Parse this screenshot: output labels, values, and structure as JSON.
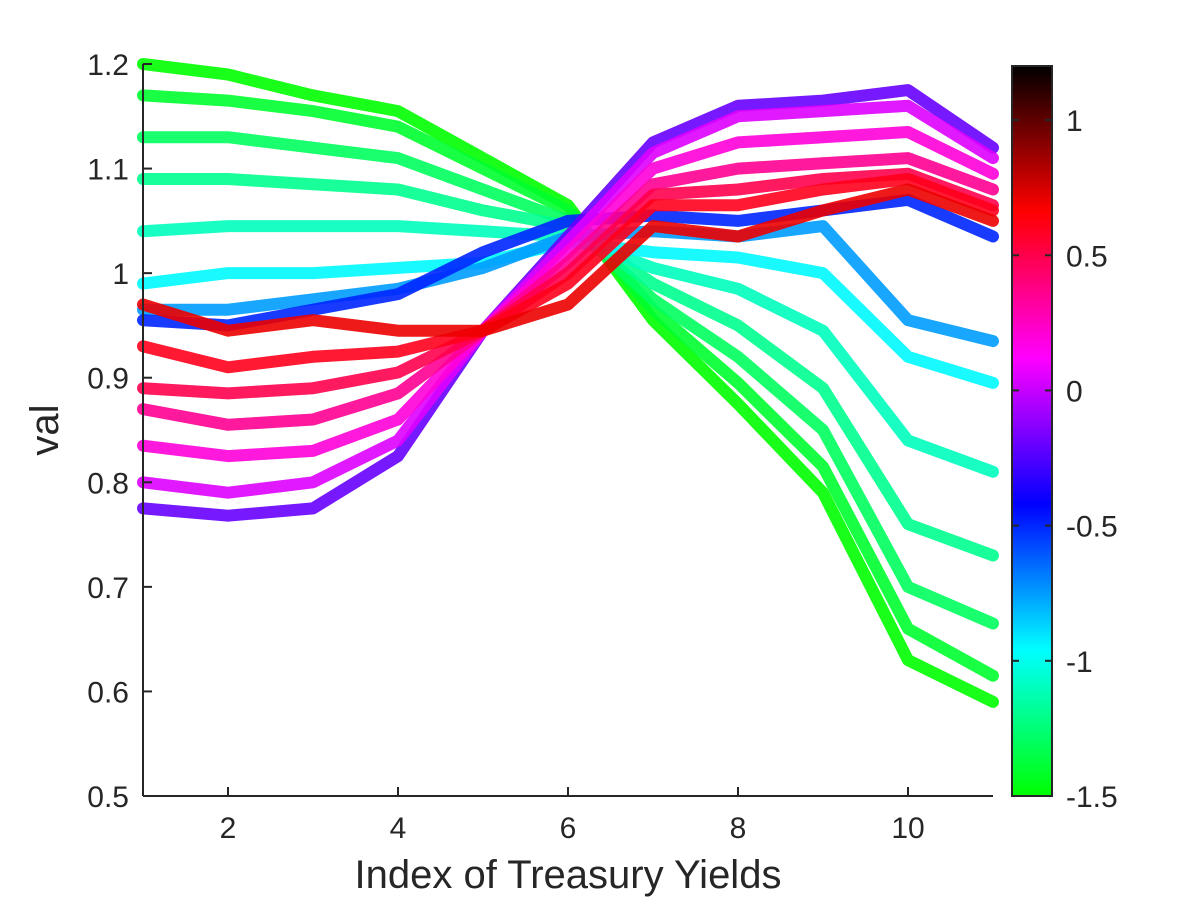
{
  "chart_data": {
    "type": "line",
    "xlabel": "Index of Treasury Yields",
    "ylabel": "val",
    "xlim": [
      1,
      11
    ],
    "ylim": [
      0.5,
      1.2
    ],
    "xticks": [
      2,
      4,
      6,
      8,
      10
    ],
    "xtick_labels": [
      "2",
      "4",
      "6",
      "8",
      "10"
    ],
    "yticks": [
      0.5,
      0.6,
      0.7,
      0.8,
      0.9,
      1.0,
      1.1,
      1.2
    ],
    "ytick_labels": [
      "0.5",
      "0.6",
      "0.7",
      "0.8",
      "0.9",
      "1",
      "1.1",
      "1.2"
    ],
    "grid": false,
    "x": [
      1,
      2,
      3,
      4,
      5,
      6,
      7,
      8,
      9,
      10,
      11
    ],
    "colorbar": {
      "range": [
        -1.5,
        1.2
      ],
      "ticks": [
        -1.5,
        -1,
        -0.5,
        0,
        0.5,
        1
      ],
      "tick_labels": [
        "-1.5",
        "-1",
        "-0.5",
        "0",
        "0.5",
        "1"
      ],
      "colormap": [
        "#00ff00",
        "#00ffff",
        "#0000ff",
        "#ff00ff",
        "#ff0000",
        "#000000"
      ]
    },
    "series": [
      {
        "color_value": -1.5,
        "values": [
          1.2,
          1.19,
          1.17,
          1.155,
          1.11,
          1.065,
          0.955,
          0.875,
          0.79,
          0.63,
          0.59
        ]
      },
      {
        "color_value": -1.4,
        "values": [
          1.17,
          1.165,
          1.155,
          1.14,
          1.1,
          1.06,
          0.965,
          0.895,
          0.815,
          0.66,
          0.615
        ]
      },
      {
        "color_value": -1.3,
        "values": [
          1.13,
          1.13,
          1.12,
          1.11,
          1.08,
          1.05,
          0.975,
          0.92,
          0.85,
          0.7,
          0.665
        ]
      },
      {
        "color_value": -1.2,
        "values": [
          1.09,
          1.09,
          1.085,
          1.08,
          1.06,
          1.045,
          0.99,
          0.95,
          0.89,
          0.76,
          0.73
        ]
      },
      {
        "color_value": -1.1,
        "values": [
          1.04,
          1.045,
          1.045,
          1.045,
          1.04,
          1.035,
          1.005,
          0.985,
          0.945,
          0.84,
          0.81
        ]
      },
      {
        "color_value": -0.95,
        "values": [
          0.99,
          1.0,
          1.0,
          1.005,
          1.01,
          1.03,
          1.02,
          1.015,
          1.0,
          0.92,
          0.895
        ]
      },
      {
        "color_value": -0.75,
        "values": [
          0.965,
          0.965,
          0.975,
          0.985,
          1.005,
          1.035,
          1.04,
          1.035,
          1.045,
          0.955,
          0.935
        ]
      },
      {
        "color_value": -0.5,
        "values": [
          0.955,
          0.95,
          0.965,
          0.98,
          1.02,
          1.05,
          1.055,
          1.05,
          1.06,
          1.07,
          1.035
        ]
      },
      {
        "color_value": -0.2,
        "values": [
          0.775,
          0.768,
          0.775,
          0.825,
          0.945,
          1.035,
          1.125,
          1.16,
          1.165,
          1.175,
          1.12
        ]
      },
      {
        "color_value": 0.05,
        "values": [
          0.8,
          0.79,
          0.8,
          0.84,
          0.945,
          1.03,
          1.115,
          1.15,
          1.155,
          1.16,
          1.11
        ]
      },
      {
        "color_value": 0.2,
        "values": [
          0.835,
          0.825,
          0.83,
          0.86,
          0.945,
          1.02,
          1.1,
          1.125,
          1.13,
          1.135,
          1.095
        ]
      },
      {
        "color_value": 0.35,
        "values": [
          0.87,
          0.855,
          0.86,
          0.885,
          0.945,
          1.01,
          1.085,
          1.1,
          1.105,
          1.11,
          1.08
        ]
      },
      {
        "color_value": 0.5,
        "values": [
          0.89,
          0.885,
          0.89,
          0.905,
          0.945,
          1.0,
          1.075,
          1.08,
          1.09,
          1.095,
          1.065
        ]
      },
      {
        "color_value": 0.6,
        "values": [
          0.93,
          0.91,
          0.92,
          0.925,
          0.945,
          0.99,
          1.065,
          1.065,
          1.08,
          1.09,
          1.06
        ]
      },
      {
        "color_value": 0.7,
        "values": [
          0.97,
          0.945,
          0.955,
          0.945,
          0.945,
          0.97,
          1.045,
          1.035,
          1.06,
          1.08,
          1.05
        ]
      }
    ]
  }
}
